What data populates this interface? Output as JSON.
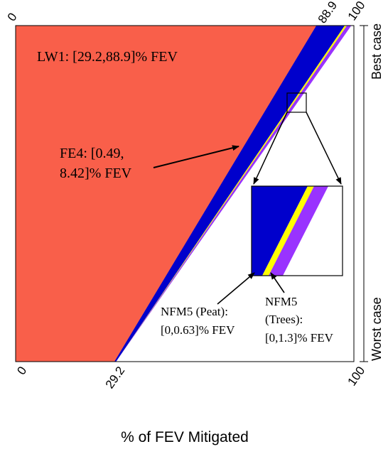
{
  "chart_data": {
    "type": "area",
    "xlabel": "% of FEV Mitigated",
    "xlim": [
      0,
      100
    ],
    "bottom_ticks": [
      "0",
      "29.2",
      "100"
    ],
    "top_ticks": [
      "0",
      "88.9",
      "100"
    ],
    "side_labels": {
      "top": "Best case",
      "bottom": "Worst case"
    },
    "colors": {
      "lw1": "#F95F4A",
      "fe4": "#0000CC",
      "nfm5_peat": "#FFFF00",
      "nfm5_trees": "#9933FF",
      "background": "#FFFFFF"
    },
    "bands": [
      {
        "key": "lw1",
        "best": [
          0,
          88.9
        ],
        "worst": [
          0,
          29.2
        ]
      },
      {
        "key": "fe4",
        "best": [
          88.9,
          97.3
        ],
        "worst": [
          29.2,
          29.69
        ]
      },
      {
        "key": "nfm5_peat",
        "best": [
          97.3,
          97.93
        ],
        "worst": [
          29.69,
          29.69
        ]
      },
      {
        "key": "nfm5_trees",
        "best": [
          97.93,
          99.23
        ],
        "worst": [
          29.69,
          29.69
        ]
      }
    ],
    "annotations": {
      "lw1": "LW1: [29.2,88.9]% FEV",
      "fe4_line1": "FE4: [0.49,",
      "fe4_line2": "8.42]% FEV",
      "peat_line1": "NFM5 (Peat):",
      "peat_line2": "[0,0.63]% FEV",
      "trees_line1": "NFM5",
      "trees_line2": "(Trees):",
      "trees_line3": "[0,1.3]% FEV"
    }
  }
}
